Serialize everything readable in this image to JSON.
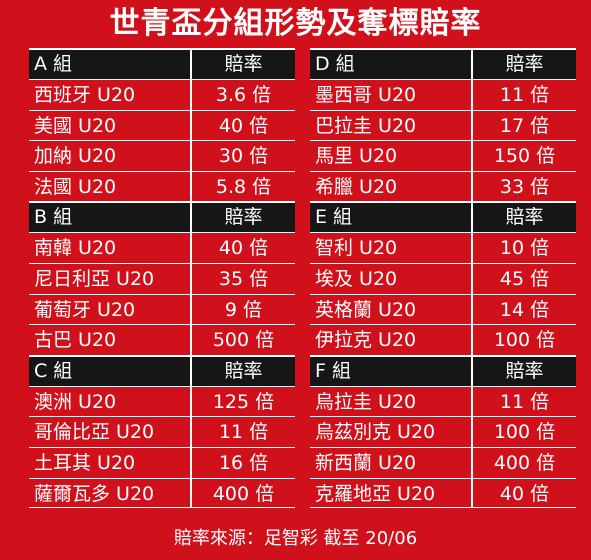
{
  "title": "世青盃分組形勢及奪標賠率",
  "odds_header": "賠率",
  "left_groups": [
    {
      "name": "A 組",
      "teams": [
        {
          "team": "西班牙 U20",
          "odds": "3.6 倍"
        },
        {
          "team": "美國 U20",
          "odds": "40 倍"
        },
        {
          "team": "加納 U20",
          "odds": "30 倍"
        },
        {
          "team": "法國 U20",
          "odds": "5.8 倍"
        }
      ]
    },
    {
      "name": "B 組",
      "teams": [
        {
          "team": "南韓 U20",
          "odds": "40 倍"
        },
        {
          "team": "尼日利亞 U20",
          "odds": "35 倍"
        },
        {
          "team": "葡萄牙 U20",
          "odds": "9 倍"
        },
        {
          "team": "古巴 U20",
          "odds": "500 倍"
        }
      ]
    },
    {
      "name": "C 組",
      "teams": [
        {
          "team": "澳洲 U20",
          "odds": "125 倍"
        },
        {
          "team": "哥倫比亞 U20",
          "odds": "11 倍"
        },
        {
          "team": "土耳其 U20",
          "odds": "16 倍"
        },
        {
          "team": "薩爾瓦多 U20",
          "odds": "400 倍"
        }
      ]
    }
  ],
  "right_groups": [
    {
      "name": "D 組",
      "teams": [
        {
          "team": "墨西哥 U20",
          "odds": "11 倍"
        },
        {
          "team": "巴拉圭 U20",
          "odds": "17 倍"
        },
        {
          "team": "馬里 U20",
          "odds": "150 倍"
        },
        {
          "team": "希臘 U20",
          "odds": "33 倍"
        }
      ]
    },
    {
      "name": "E 組",
      "teams": [
        {
          "team": "智利 U20",
          "odds": "10 倍"
        },
        {
          "team": "埃及 U20",
          "odds": "45 倍"
        },
        {
          "team": "英格蘭 U20",
          "odds": "14 倍"
        },
        {
          "team": "伊拉克 U20",
          "odds": "100 倍"
        }
      ]
    },
    {
      "name": "F 組",
      "teams": [
        {
          "team": "烏拉圭 U20",
          "odds": "11 倍"
        },
        {
          "team": "烏茲別克 U20",
          "odds": "100 倍"
        },
        {
          "team": "新西蘭 U20",
          "odds": "400 倍"
        },
        {
          "team": "克羅地亞 U20",
          "odds": "40 倍"
        }
      ]
    }
  ],
  "footer": "賠率來源：足智彩 截至 20/06"
}
